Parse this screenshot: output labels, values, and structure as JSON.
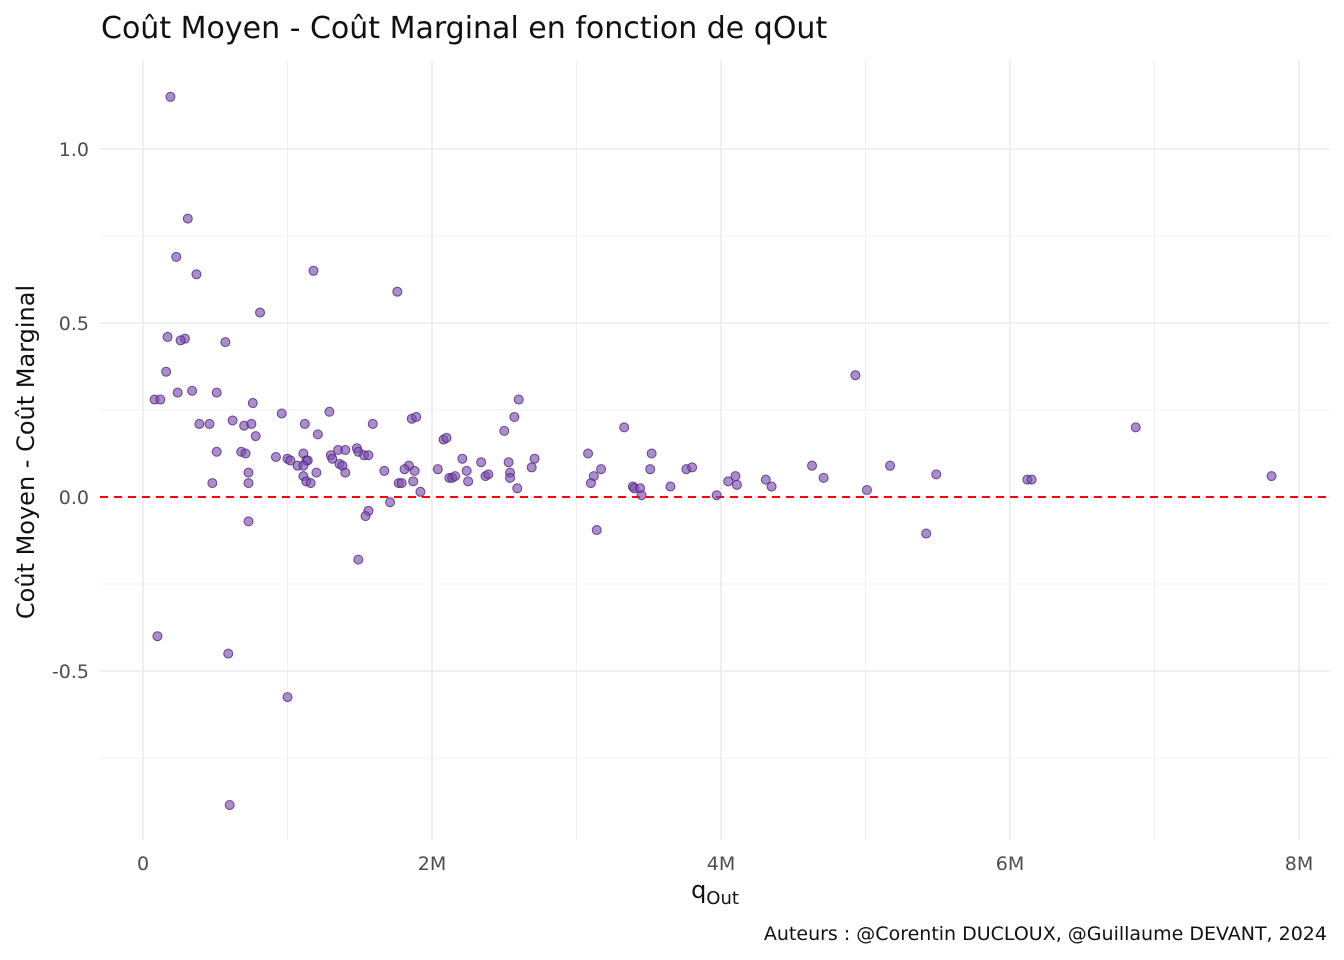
{
  "chart_data": {
    "type": "scatter",
    "title": "Coût Moyen - Coût Marginal en fonction de qOut",
    "xlabel_main": "q",
    "xlabel_sub": "Out",
    "ylabel": "Coût Moyen - Coût Marginal",
    "caption": "Auteurs : @Corentin DUCLOUX, @Guillaume DEVANT, 2024",
    "xlim": [
      -0.3,
      8.2
    ],
    "ylim": [
      -0.98,
      1.24
    ],
    "x_unit": "millions",
    "x_ticks": [
      {
        "v": 0,
        "label": "0"
      },
      {
        "v": 2,
        "label": "2M"
      },
      {
        "v": 4,
        "label": "4M"
      },
      {
        "v": 6,
        "label": "6M"
      },
      {
        "v": 8,
        "label": "8M"
      }
    ],
    "y_ticks": [
      {
        "v": -0.5,
        "label": "-0.5"
      },
      {
        "v": 0,
        "label": "0.0"
      },
      {
        "v": 0.5,
        "label": "0.5"
      },
      {
        "v": 1.0,
        "label": "1.0"
      }
    ],
    "x_minor": [
      1,
      3,
      5,
      7
    ],
    "y_minor": [
      -0.75,
      -0.25,
      0.25,
      0.75
    ],
    "grid": true,
    "reference_line": {
      "y": 0,
      "style": "dashed",
      "color": "#ff0000"
    },
    "point_color": "#7e4fb0",
    "points": [
      [
        0.19,
        1.15
      ],
      [
        0.31,
        0.8
      ],
      [
        0.23,
        0.69
      ],
      [
        0.37,
        0.64
      ],
      [
        1.18,
        0.65
      ],
      [
        1.76,
        0.59
      ],
      [
        0.81,
        0.53
      ],
      [
        0.17,
        0.46
      ],
      [
        0.29,
        0.455
      ],
      [
        0.26,
        0.45
      ],
      [
        0.57,
        0.445
      ],
      [
        0.16,
        0.36
      ],
      [
        4.93,
        0.35
      ],
      [
        0.08,
        0.28
      ],
      [
        0.12,
        0.28
      ],
      [
        0.24,
        0.3
      ],
      [
        0.34,
        0.305
      ],
      [
        0.51,
        0.3
      ],
      [
        2.6,
        0.28
      ],
      [
        0.76,
        0.27
      ],
      [
        0.96,
        0.24
      ],
      [
        1.29,
        0.245
      ],
      [
        2.57,
        0.23
      ],
      [
        1.86,
        0.225
      ],
      [
        1.89,
        0.23
      ],
      [
        0.39,
        0.21
      ],
      [
        0.46,
        0.21
      ],
      [
        0.62,
        0.22
      ],
      [
        0.7,
        0.205
      ],
      [
        0.75,
        0.21
      ],
      [
        1.12,
        0.21
      ],
      [
        1.59,
        0.21
      ],
      [
        3.33,
        0.2
      ],
      [
        6.87,
        0.2
      ],
      [
        0.78,
        0.175
      ],
      [
        1.21,
        0.18
      ],
      [
        2.5,
        0.19
      ],
      [
        2.08,
        0.165
      ],
      [
        2.1,
        0.17
      ],
      [
        0.51,
        0.13
      ],
      [
        0.68,
        0.13
      ],
      [
        0.71,
        0.125
      ],
      [
        3.08,
        0.125
      ],
      [
        3.52,
        0.125
      ],
      [
        0.92,
        0.115
      ],
      [
        1.0,
        0.11
      ],
      [
        1.02,
        0.105
      ],
      [
        1.11,
        0.125
      ],
      [
        1.13,
        0.105
      ],
      [
        1.14,
        0.105
      ],
      [
        1.3,
        0.12
      ],
      [
        1.31,
        0.11
      ],
      [
        1.35,
        0.135
      ],
      [
        1.4,
        0.135
      ],
      [
        1.48,
        0.14
      ],
      [
        1.49,
        0.13
      ],
      [
        1.53,
        0.12
      ],
      [
        1.56,
        0.12
      ],
      [
        2.21,
        0.11
      ],
      [
        2.34,
        0.1
      ],
      [
        2.53,
        0.1
      ],
      [
        2.71,
        0.11
      ],
      [
        1.07,
        0.09
      ],
      [
        1.11,
        0.09
      ],
      [
        1.36,
        0.095
      ],
      [
        1.38,
        0.09
      ],
      [
        1.2,
        0.07
      ],
      [
        1.4,
        0.07
      ],
      [
        1.67,
        0.075
      ],
      [
        1.84,
        0.09
      ],
      [
        1.81,
        0.08
      ],
      [
        1.88,
        0.075
      ],
      [
        2.04,
        0.08
      ],
      [
        2.24,
        0.075
      ],
      [
        2.54,
        0.07
      ],
      [
        2.69,
        0.085
      ],
      [
        3.17,
        0.08
      ],
      [
        3.51,
        0.08
      ],
      [
        3.76,
        0.08
      ],
      [
        3.8,
        0.085
      ],
      [
        4.63,
        0.09
      ],
      [
        5.17,
        0.09
      ],
      [
        0.73,
        0.07
      ],
      [
        1.11,
        0.06
      ],
      [
        2.12,
        0.055
      ],
      [
        2.14,
        0.055
      ],
      [
        2.16,
        0.06
      ],
      [
        2.37,
        0.06
      ],
      [
        2.39,
        0.065
      ],
      [
        2.54,
        0.055
      ],
      [
        3.12,
        0.06
      ],
      [
        4.1,
        0.06
      ],
      [
        4.31,
        0.05
      ],
      [
        4.71,
        0.055
      ],
      [
        5.49,
        0.065
      ],
      [
        7.81,
        0.06
      ],
      [
        6.12,
        0.05
      ],
      [
        6.15,
        0.05
      ],
      [
        0.48,
        0.04
      ],
      [
        0.73,
        0.04
      ],
      [
        1.13,
        0.045
      ],
      [
        1.16,
        0.04
      ],
      [
        1.77,
        0.04
      ],
      [
        1.79,
        0.04
      ],
      [
        1.87,
        0.045
      ],
      [
        2.25,
        0.045
      ],
      [
        3.1,
        0.04
      ],
      [
        3.39,
        0.03
      ],
      [
        3.4,
        0.025
      ],
      [
        3.44,
        0.025
      ],
      [
        3.65,
        0.03
      ],
      [
        4.05,
        0.045
      ],
      [
        4.11,
        0.035
      ],
      [
        4.35,
        0.03
      ],
      [
        2.59,
        0.025
      ],
      [
        5.01,
        0.02
      ],
      [
        1.92,
        0.015
      ],
      [
        3.45,
        0.005
      ],
      [
        3.97,
        0.005
      ],
      [
        1.71,
        -0.015
      ],
      [
        1.56,
        -0.04
      ],
      [
        1.54,
        -0.055
      ],
      [
        0.73,
        -0.07
      ],
      [
        3.14,
        -0.095
      ],
      [
        5.42,
        -0.105
      ],
      [
        1.49,
        -0.18
      ],
      [
        0.1,
        -0.4
      ],
      [
        0.59,
        -0.45
      ],
      [
        1.0,
        -0.575
      ],
      [
        0.6,
        -0.885
      ]
    ]
  }
}
